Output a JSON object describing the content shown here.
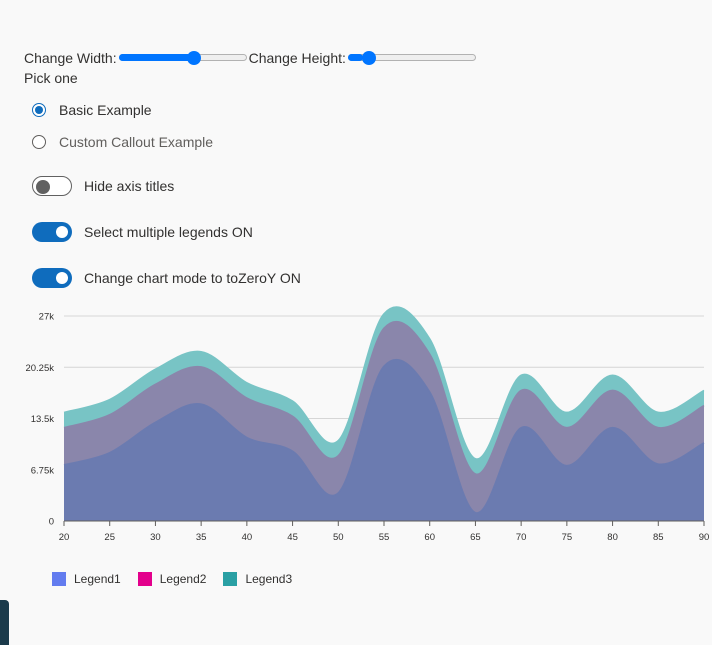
{
  "controls": {
    "width_label": "Change Width:",
    "width_value": 0.6,
    "height_label": "Change Height:",
    "height_value": 0.12,
    "pick_label": "Pick one",
    "radios": [
      {
        "label": "Basic Example",
        "checked": true
      },
      {
        "label": "Custom Callout Example",
        "checked": false
      }
    ],
    "toggles": [
      {
        "label": "Hide axis titles",
        "on": false
      },
      {
        "label": "Select multiple legends ON",
        "on": true
      },
      {
        "label": "Change chart mode to toZeroY ON",
        "on": true
      }
    ]
  },
  "colors": {
    "accent": "#0f6cbd",
    "slider": "#0075ff",
    "legend1": "#637cef",
    "legend2": "#e3008c",
    "legend3": "#2aa0a4"
  },
  "chart_data": {
    "type": "area",
    "stacked": false,
    "x": [
      20,
      25,
      30,
      35,
      40,
      45,
      50,
      55,
      60,
      65,
      70,
      75,
      80,
      85,
      90
    ],
    "y_ticks": [
      "0",
      "6.75k",
      "13.5k",
      "20.25k",
      "27k"
    ],
    "y_tick_values": [
      0,
      6750,
      13500,
      20250,
      27000
    ],
    "x_ticks": [
      "20",
      "25",
      "30",
      "35",
      "40",
      "45",
      "50",
      "55",
      "60",
      "65",
      "70",
      "75",
      "80",
      "85",
      "90"
    ],
    "ylim": [
      0,
      27000
    ],
    "grid": true,
    "legend_position": "bottom-left",
    "series": [
      {
        "name": "Legend1",
        "color": "#637cef",
        "values": [
          7400,
          9000,
          13000,
          15400,
          11000,
          9200,
          3700,
          20400,
          17000,
          1100,
          12300,
          7300,
          12300,
          7500,
          10300
        ]
      },
      {
        "name": "Legend2",
        "color": "#e3008c",
        "values": [
          12300,
          14000,
          18000,
          20300,
          16200,
          13800,
          8600,
          25400,
          22000,
          6200,
          17200,
          12300,
          17200,
          12300,
          15200
        ]
      },
      {
        "name": "Legend3",
        "color": "#2aa0a4",
        "values": [
          14300,
          16000,
          20000,
          22300,
          18200,
          15800,
          10600,
          27300,
          24000,
          8200,
          19200,
          14300,
          19200,
          14300,
          17200
        ]
      }
    ]
  }
}
